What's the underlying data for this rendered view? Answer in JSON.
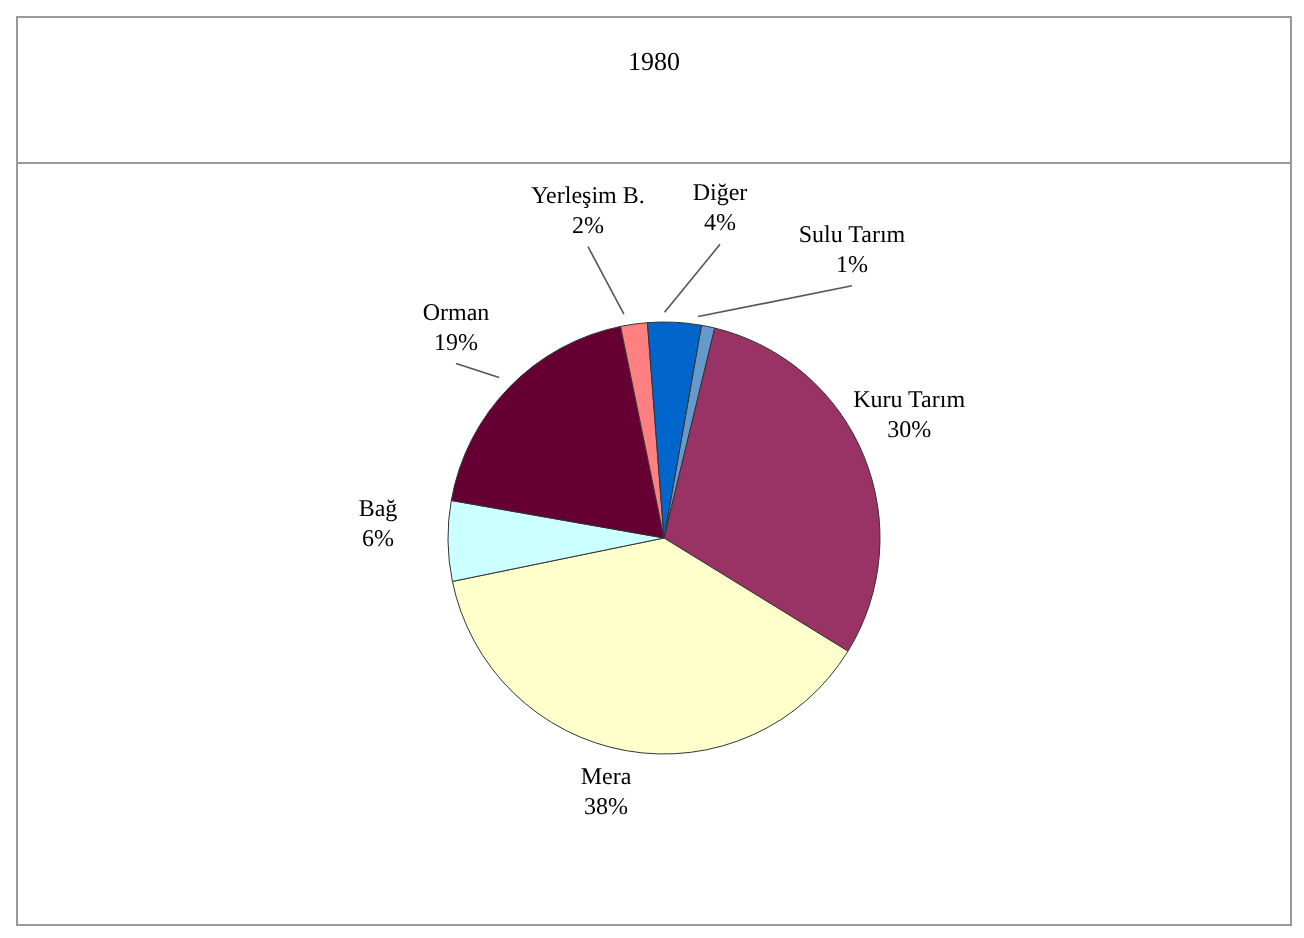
{
  "chart_data": {
    "type": "pie",
    "title": "1980",
    "categories": [
      "Sulu Tarım",
      "Kuru Tarım",
      "Mera",
      "Bağ",
      "Orman",
      "Yerleşim B.",
      "Diğer"
    ],
    "values": [
      1,
      30,
      38,
      6,
      19,
      2,
      4
    ],
    "colors": [
      "#6699cc",
      "#993366",
      "#ffffcc",
      "#ccffff",
      "#660033",
      "#ff8080",
      "#0066cc"
    ],
    "value_labels": [
      "1%",
      "30%",
      "38%",
      "6%",
      "19%",
      "2%",
      "4%"
    ],
    "legend": false
  }
}
